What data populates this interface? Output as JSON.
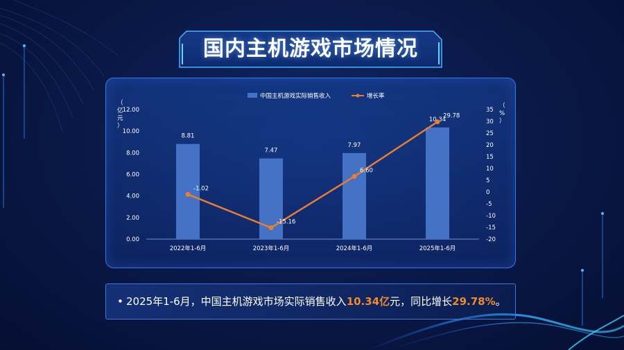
{
  "page": {
    "title": "国内主机游戏市场情况"
  },
  "colors": {
    "bar": "#4472c4",
    "line": "#ed7d31",
    "accent": "#f08a2c",
    "frame": "#3c77e6"
  },
  "chart_data": {
    "type": "bar",
    "categories": [
      "2022年1-6月",
      "2023年1-6月",
      "2024年1-6月",
      "2025年1-6月"
    ],
    "series": [
      {
        "name": "中国主机游戏实际销售收入",
        "type": "bar",
        "axis": "left",
        "values": [
          8.81,
          7.47,
          7.97,
          10.34
        ],
        "labels": [
          "8.81",
          "7.47",
          "7.97",
          "10.34"
        ]
      },
      {
        "name": "增长率",
        "type": "line",
        "axis": "right",
        "values": [
          -1.02,
          -15.16,
          6.6,
          29.78
        ],
        "labels": [
          "-1.02",
          "-15.16",
          "6.60",
          "29.78"
        ]
      }
    ],
    "ylabel": "（亿元）",
    "ylabel_right": "（%）",
    "ylim": [
      0,
      12
    ],
    "yticks": [
      "12.00",
      "10.00",
      "8.00",
      "6.00",
      "4.00",
      "2.00",
      "0.00"
    ],
    "ylim_right": [
      -20,
      35
    ],
    "yticks_right": [
      "35",
      "30",
      "25",
      "20",
      "15",
      "10",
      "5",
      "0",
      "-5",
      "-10",
      "-15",
      "-20"
    ],
    "legend": "top-center",
    "grid": false
  },
  "summary": {
    "bullet": "•",
    "part1": "2025年1-6月，中国主机游戏市场实际销售收入",
    "highlight1": "10.34亿",
    "part2": "元，同比增长",
    "highlight2": "29.78%",
    "part3": "。"
  }
}
